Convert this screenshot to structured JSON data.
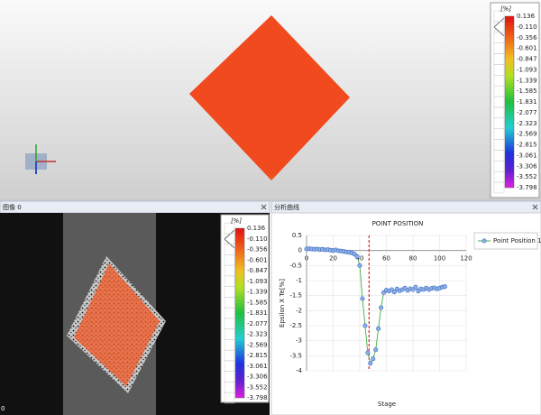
{
  "colorbar": {
    "unit": "[%]",
    "labels": [
      "0.136",
      "-0.110",
      "-0.356",
      "-0.601",
      "-0.847",
      "-1.093",
      "-1.339",
      "-1.585",
      "-1.831",
      "-2.077",
      "-2.323",
      "-2.569",
      "-2.815",
      "-3.061",
      "-3.306",
      "-3.552",
      "-3.798"
    ]
  },
  "image_panel": {
    "title": "图像 0",
    "frame_label": "0"
  },
  "analysis_panel": {
    "title": "分析曲线",
    "chart_data": {
      "type": "line",
      "title": "POINT POSITION",
      "x_label": "Stage",
      "y_label": "Epsilon X Te[%]",
      "x": [
        0,
        2,
        4,
        6,
        8,
        10,
        12,
        14,
        16,
        18,
        20,
        22,
        24,
        26,
        28,
        30,
        32,
        34,
        36,
        38,
        40,
        42,
        44,
        46,
        48,
        50,
        52,
        54,
        56,
        58,
        60,
        62,
        64,
        66,
        68,
        70,
        72,
        74,
        76,
        78,
        80,
        82,
        84,
        86,
        88,
        90,
        92,
        94,
        96,
        98,
        100,
        102,
        104
      ],
      "series": [
        {
          "name": "Point Position 1",
          "color": "#4472c4",
          "values": [
            0.05,
            0.06,
            0.05,
            0.04,
            0.05,
            0.03,
            0.04,
            0.02,
            0.03,
            0.01,
            0.0,
            0.02,
            -0.01,
            -0.02,
            -0.03,
            -0.05,
            -0.06,
            -0.08,
            -0.12,
            -0.2,
            -0.5,
            -1.6,
            -2.5,
            -3.4,
            -3.75,
            -3.6,
            -3.3,
            -2.6,
            -1.9,
            -1.4,
            -1.32,
            -1.35,
            -1.3,
            -1.38,
            -1.28,
            -1.34,
            -1.3,
            -1.25,
            -1.33,
            -1.27,
            -1.3,
            -1.22,
            -1.35,
            -1.28,
            -1.3,
            -1.25,
            -1.3,
            -1.26,
            -1.24,
            -1.28,
            -1.25,
            -1.22,
            -1.2
          ]
        }
      ],
      "xlim": [
        0,
        120
      ],
      "xticks": [
        0,
        20,
        40,
        60,
        80,
        100,
        120
      ],
      "ylim": [
        -4,
        0.5
      ],
      "yticks": [
        0.5,
        0,
        -0.5,
        -1,
        -1.5,
        -2,
        -2.5,
        -3,
        -3.5,
        -4
      ],
      "grid": true,
      "cursor_x": 47,
      "cursor_color": "#e02020",
      "legend": "right"
    }
  }
}
